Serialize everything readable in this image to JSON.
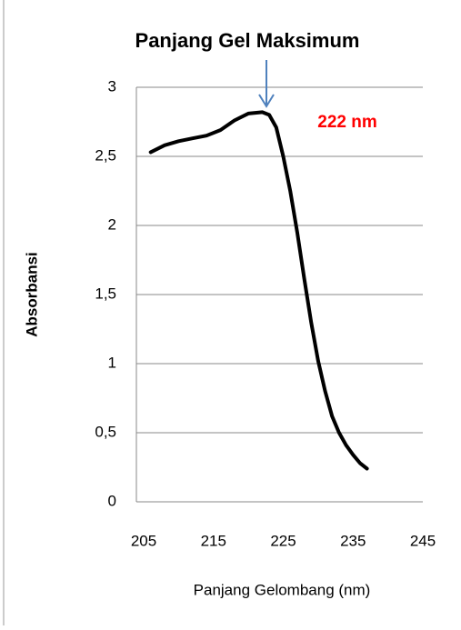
{
  "chart_data": {
    "type": "line",
    "title": "Panjang Gel Maksimum",
    "x_label": "Panjang Gelombang (nm)",
    "y_label": "Absorbansi",
    "annotation": "222 nm",
    "x": [
      206,
      208,
      210,
      212,
      214,
      216,
      218,
      220,
      222,
      223,
      224,
      225,
      226,
      227,
      228,
      229,
      230,
      231,
      232,
      233,
      234,
      235,
      236,
      237
    ],
    "values": [
      2.53,
      2.58,
      2.61,
      2.63,
      2.65,
      2.69,
      2.76,
      2.81,
      2.82,
      2.8,
      2.71,
      2.5,
      2.25,
      1.95,
      1.62,
      1.3,
      1.02,
      0.8,
      0.62,
      0.5,
      0.41,
      0.34,
      0.28,
      0.24
    ],
    "color": "#000000",
    "xlim": [
      205,
      245
    ],
    "xticks": [
      205,
      215,
      225,
      235,
      245
    ],
    "ylim": [
      0,
      3
    ],
    "yticks": [
      0,
      {
        "value": 0.5,
        "label": "0,5"
      },
      1,
      {
        "value": 1.5,
        "label": "1,5"
      },
      2,
      {
        "value": 2.5,
        "label": "2,5"
      },
      3
    ],
    "grid": true
  }
}
